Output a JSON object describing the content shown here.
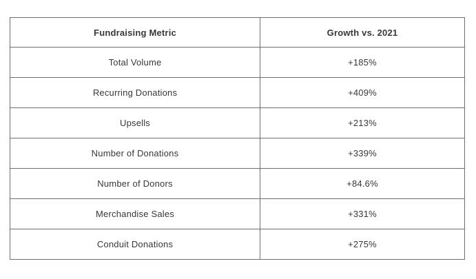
{
  "table": {
    "columns": [
      "Fundraising Metric",
      "Growth vs. 2021"
    ],
    "rows": [
      {
        "metric": "Total Volume",
        "growth": "+185%"
      },
      {
        "metric": "Recurring Donations",
        "growth": "+409%"
      },
      {
        "metric": "Upsells",
        "growth": "+213%"
      },
      {
        "metric": "Number of Donations",
        "growth": "+339%"
      },
      {
        "metric": "Number of Donors",
        "growth": "+84.6%"
      },
      {
        "metric": "Merchandise Sales",
        "growth": "+331%"
      },
      {
        "metric": "Conduit Donations",
        "growth": "+275%"
      }
    ]
  },
  "chart_data": {
    "type": "table",
    "columns": [
      "Fundraising Metric",
      "Growth vs. 2021"
    ],
    "rows": [
      [
        "Total Volume",
        "+185%"
      ],
      [
        "Recurring Donations",
        "+409%"
      ],
      [
        "Upsells",
        "+213%"
      ],
      [
        "Number of Donations",
        "+339%"
      ],
      [
        "Number of Donors",
        "+84.6%"
      ],
      [
        "Merchandise Sales",
        "+331%"
      ],
      [
        "Conduit Donations",
        "+275%"
      ]
    ],
    "values_numeric_percent": [
      185,
      409,
      213,
      339,
      84.6,
      331,
      275
    ],
    "title": ""
  },
  "colors": {
    "border": "#6e6e6e",
    "text": "#373737",
    "background": "#ffffff"
  }
}
